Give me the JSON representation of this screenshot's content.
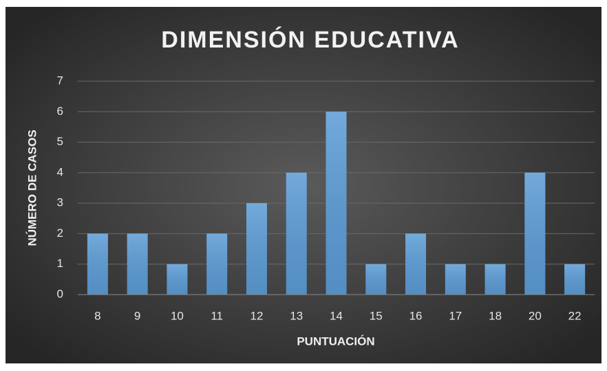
{
  "chart_data": {
    "type": "bar",
    "title": "DIMENSIÓN EDUCATIVA",
    "x_label": "PUNTUACIÓN",
    "y_label": "NÚMERO DE CASOS",
    "categories": [
      "8",
      "9",
      "10",
      "11",
      "12",
      "13",
      "14",
      "15",
      "16",
      "17",
      "18",
      "20",
      "22"
    ],
    "values": [
      2,
      2,
      1,
      2,
      3,
      4,
      6,
      1,
      2,
      1,
      1,
      4,
      1
    ],
    "color": "#5b9bd5",
    "ylim": [
      0,
      7
    ],
    "yticks": [
      0,
      1,
      2,
      3,
      4,
      5,
      6,
      7
    ],
    "grid": true
  }
}
